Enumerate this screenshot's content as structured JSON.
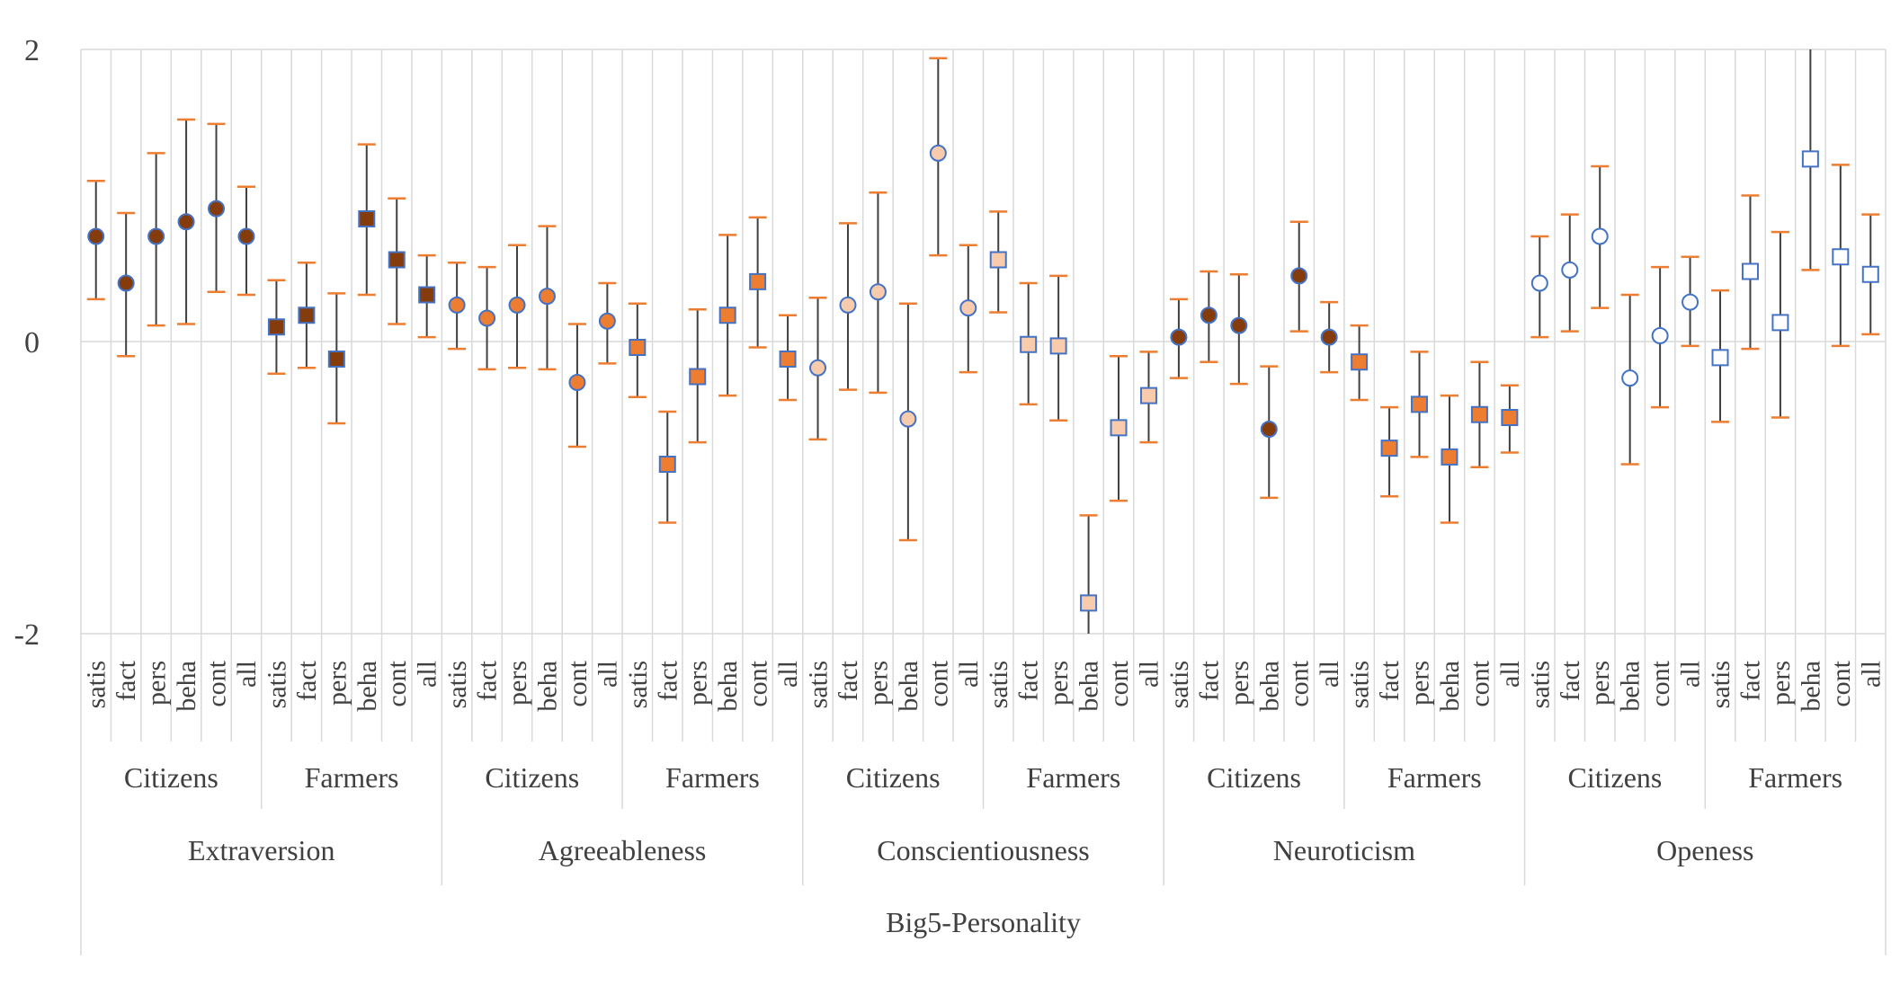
{
  "chart_data": {
    "type": "scatter",
    "subtype": "mean with error bars (min/max)",
    "title": "",
    "ylabel": "",
    "ylim": [
      -2,
      2
    ],
    "yticks": [
      -2,
      0,
      2
    ],
    "grid": "vertical separators per category",
    "x_axis": {
      "top_label": "Big5-Personality",
      "traits": [
        "Extraversion",
        "Agreeableness",
        "Conscientiousness",
        "Neuroticism",
        "Openess"
      ],
      "groups": [
        "Citizens",
        "Farmers"
      ],
      "items": [
        "satis",
        "fact",
        "pers",
        "beha",
        "cont",
        "all"
      ]
    },
    "colors": {
      "error_bar": "#404040",
      "cap": "#ED7D31",
      "marker_edge": "#4472C4",
      "dark_fill": "#843C0C",
      "orange_fill": "#ED7D31",
      "light_fill": "#F8CBAD",
      "white_fill": "#FFFFFF",
      "grid": "#D9D9D9"
    },
    "series": [
      {
        "trait": "Extraversion",
        "group": "Citizens",
        "marker": "circle",
        "fill": "dark_fill",
        "mean": [
          0.72,
          0.4,
          0.72,
          0.82,
          0.91,
          0.72
        ],
        "upper": [
          1.1,
          0.88,
          1.29,
          1.52,
          1.49,
          1.06
        ],
        "lower": [
          0.29,
          -0.1,
          0.11,
          0.12,
          0.34,
          0.32
        ]
      },
      {
        "trait": "Extraversion",
        "group": "Farmers",
        "marker": "square",
        "fill": "dark_fill",
        "mean": [
          0.1,
          0.18,
          -0.12,
          0.84,
          0.56,
          0.32
        ],
        "upper": [
          0.42,
          0.54,
          0.33,
          1.35,
          0.98,
          0.59
        ],
        "lower": [
          -0.22,
          -0.18,
          -0.56,
          0.32,
          0.12,
          0.03
        ]
      },
      {
        "trait": "Agreeableness",
        "group": "Citizens",
        "marker": "circle",
        "fill": "orange_fill",
        "mean": [
          0.25,
          0.16,
          0.25,
          0.31,
          -0.28,
          0.14
        ],
        "upper": [
          0.54,
          0.51,
          0.66,
          0.79,
          0.12,
          0.4
        ],
        "lower": [
          -0.05,
          -0.19,
          -0.18,
          -0.19,
          -0.72,
          -0.15
        ]
      },
      {
        "trait": "Agreeableness",
        "group": "Farmers",
        "marker": "square",
        "fill": "orange_fill",
        "mean": [
          -0.04,
          -0.84,
          -0.24,
          0.18,
          0.41,
          -0.12
        ],
        "upper": [
          0.26,
          -0.48,
          0.22,
          0.73,
          0.85,
          0.18
        ],
        "lower": [
          -0.38,
          -1.24,
          -0.69,
          -0.37,
          -0.04,
          -0.4
        ]
      },
      {
        "trait": "Conscientiousness",
        "group": "Citizens",
        "marker": "circle",
        "fill": "light_fill",
        "mean": [
          -0.18,
          0.25,
          0.34,
          -0.53,
          1.29,
          0.23
        ],
        "upper": [
          0.3,
          0.81,
          1.02,
          0.26,
          1.94,
          0.66
        ],
        "lower": [
          -0.67,
          -0.33,
          -0.35,
          -1.36,
          0.59,
          -0.21
        ]
      },
      {
        "trait": "Conscientiousness",
        "group": "Farmers",
        "marker": "square",
        "fill": "light_fill",
        "mean": [
          0.56,
          -0.02,
          -0.03,
          -1.79,
          -0.59,
          -0.37
        ],
        "upper": [
          0.89,
          0.4,
          0.45,
          -1.19,
          -0.1,
          -0.07
        ],
        "lower": [
          0.2,
          -0.43,
          -0.54,
          -2.0,
          -1.09,
          -0.69
        ]
      },
      {
        "trait": "Neuroticism",
        "group": "Citizens",
        "marker": "circle",
        "fill": "dark_fill",
        "mean": [
          0.03,
          0.18,
          0.11,
          -0.6,
          0.45,
          0.03
        ],
        "upper": [
          0.29,
          0.48,
          0.46,
          -0.17,
          0.82,
          0.27
        ],
        "lower": [
          -0.25,
          -0.14,
          -0.29,
          -1.07,
          0.07,
          -0.21
        ]
      },
      {
        "trait": "Neuroticism",
        "group": "Farmers",
        "marker": "square",
        "fill": "orange_fill",
        "mean": [
          -0.14,
          -0.73,
          -0.43,
          -0.79,
          -0.5,
          -0.52
        ],
        "upper": [
          0.11,
          -0.45,
          -0.07,
          -0.37,
          -0.14,
          -0.3
        ],
        "lower": [
          -0.4,
          -1.06,
          -0.79,
          -1.24,
          -0.86,
          -0.76
        ]
      },
      {
        "trait": "Openess",
        "group": "Citizens",
        "marker": "circle",
        "fill": "white_fill",
        "mean": [
          0.4,
          0.49,
          0.72,
          -0.25,
          0.04,
          0.27
        ],
        "upper": [
          0.72,
          0.87,
          1.2,
          0.32,
          0.51,
          0.58
        ],
        "lower": [
          0.03,
          0.07,
          0.23,
          -0.84,
          -0.45,
          -0.03
        ]
      },
      {
        "trait": "Openess",
        "group": "Farmers",
        "marker": "square",
        "fill": "white_fill",
        "mean": [
          -0.11,
          0.48,
          0.13,
          1.25,
          0.58,
          0.46
        ],
        "upper": [
          0.35,
          1.0,
          0.75,
          2.0,
          1.21,
          0.87
        ],
        "lower": [
          -0.55,
          -0.05,
          -0.52,
          0.49,
          -0.03,
          0.05
        ]
      }
    ]
  }
}
